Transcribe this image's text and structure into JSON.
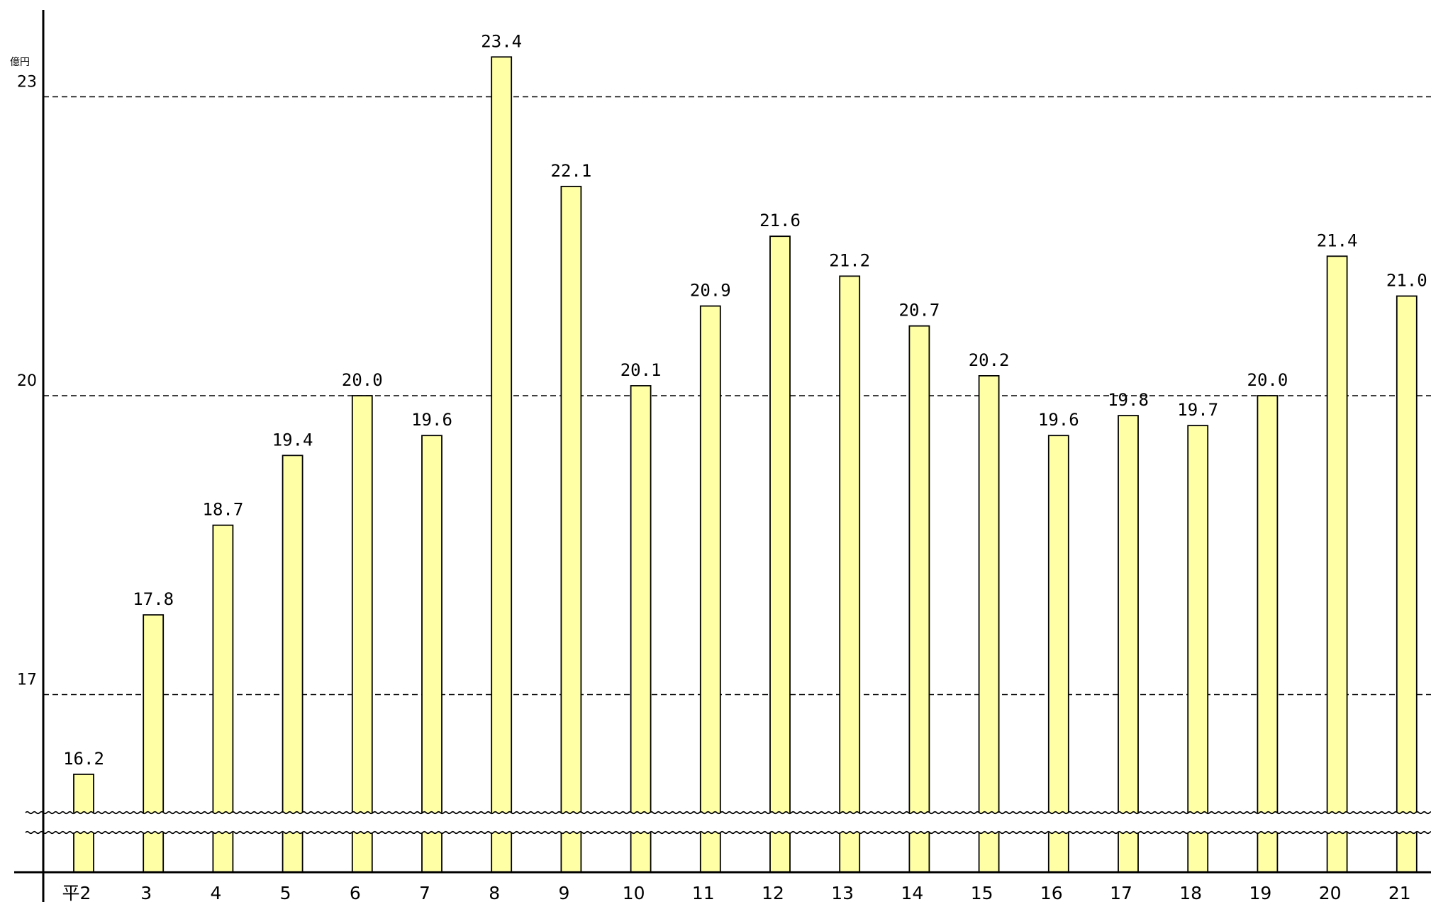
{
  "chart_data": {
    "type": "bar",
    "unit": "億円",
    "categories": [
      "平2",
      "3",
      "4",
      "5",
      "6",
      "7",
      "8",
      "9",
      "10",
      "11",
      "12",
      "13",
      "14",
      "15",
      "16",
      "17",
      "18",
      "19",
      "20",
      "21"
    ],
    "values": [
      16.2,
      17.8,
      18.7,
      19.4,
      20.0,
      19.6,
      23.4,
      22.1,
      20.1,
      20.9,
      21.6,
      21.2,
      20.7,
      20.2,
      19.6,
      19.8,
      19.7,
      20.0,
      21.4,
      21.0
    ],
    "value_labels": [
      "16.2",
      "17.8",
      "18.7",
      "19.4",
      "20.0",
      "19.6",
      "23.4",
      "22.1",
      "20.1",
      "20.9",
      "21.6",
      "21.2",
      "20.7",
      "20.2",
      "19.6",
      "19.8",
      "19.7",
      "20.0",
      "21.4",
      "21.0"
    ],
    "yticks": [
      17,
      20,
      23
    ],
    "ylim": [
      14.8,
      23.8
    ],
    "axis_break": true,
    "grid": "dashed-horizontal",
    "legend": "none",
    "title": "",
    "xlabel": "",
    "ylabel": "",
    "colors": {
      "bar_fill": "#ffffa6",
      "bar_stroke": "#000000",
      "grid": "#000000"
    }
  }
}
